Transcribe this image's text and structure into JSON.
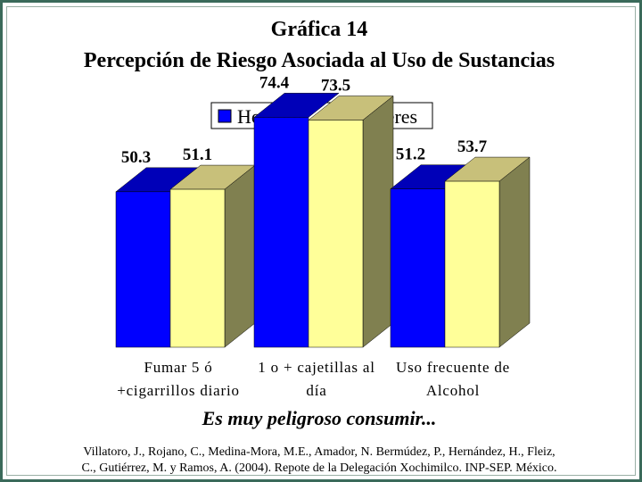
{
  "chart_data": {
    "type": "bar",
    "title": "Gráfica 14",
    "subtitle": "Percepción de Riesgo Asociada al Uso de Sustancias",
    "xlabel": "Es muy peligroso consumir...",
    "ylabel": "",
    "ylim": [
      0,
      80
    ],
    "grid": false,
    "legend_position": "top-center",
    "categories": [
      [
        "Fumar 5 ó",
        "+cigarrillos diario"
      ],
      [
        "1 o + cajetillas al",
        "día"
      ],
      [
        "Uso frecuente de",
        "Alcohol"
      ]
    ],
    "series": [
      {
        "name": "Hombres",
        "values": [
          50.3,
          74.4,
          51.2
        ],
        "color": "#0000ff",
        "top_color": "#0000b8"
      },
      {
        "name": "Mujeres",
        "values": [
          51.1,
          73.5,
          53.7
        ],
        "color": "#ffff99",
        "top_color": "#c8c07a",
        "side_color": "#808050"
      }
    ]
  },
  "footer": {
    "source_line1": "Villatoro, J., Rojano, C., Medina-Mora, M.E., Amador, N. Bermúdez, P., Hernández, H., Fleiz,",
    "source_line2": "C., Gutiérrez, M. y Ramos, A. (2004). Repote de la Delegación Xochimilco. INP-SEP. México."
  }
}
